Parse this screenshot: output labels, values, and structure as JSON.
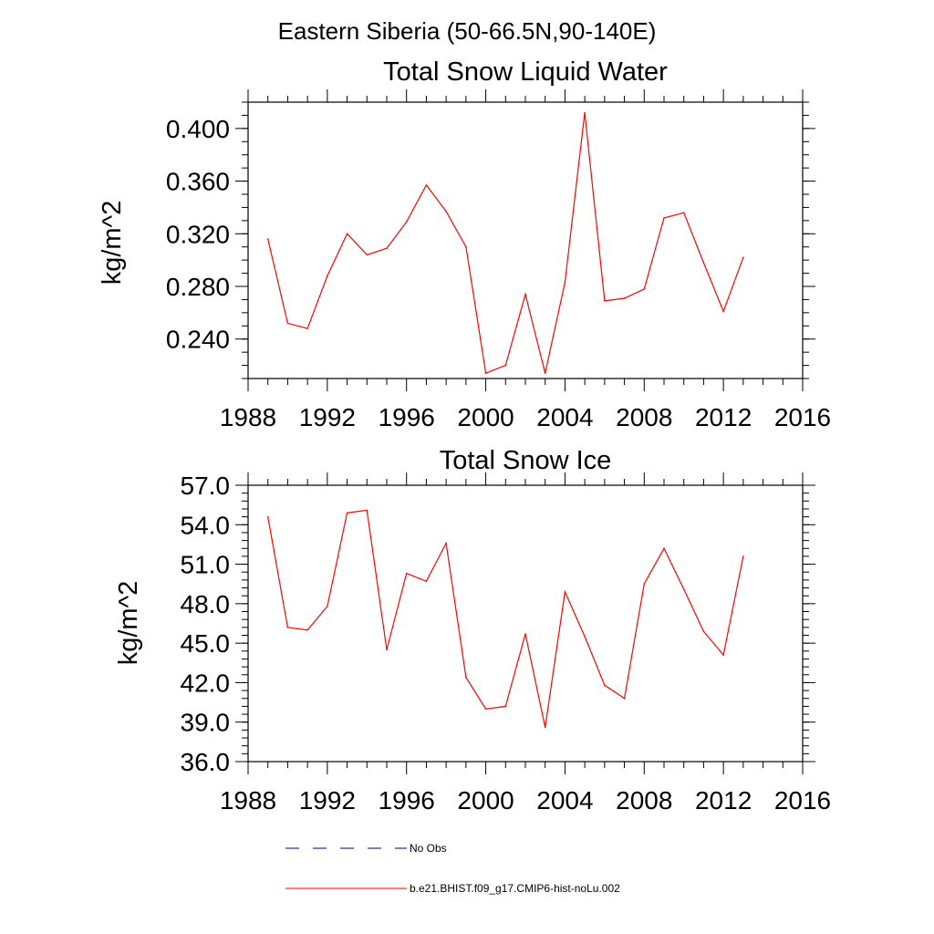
{
  "figure": {
    "region_title": "Eastern Siberia (50-66.5N,90-140E)"
  },
  "chart_data": [
    {
      "type": "line",
      "title": "Total Snow Liquid Water",
      "xlabel": "",
      "ylabel": "kg/m^2",
      "xlim": [
        1988,
        2016
      ],
      "ylim": [
        0.21,
        0.42
      ],
      "x_ticks": [
        "1988",
        "1992",
        "1996",
        "2000",
        "2004",
        "2008",
        "2012",
        "2016"
      ],
      "y_ticks": [
        "0.240",
        "0.280",
        "0.320",
        "0.360",
        "0.400"
      ],
      "y_tick_values": [
        0.24,
        0.28,
        0.32,
        0.36,
        0.4
      ],
      "grid": false,
      "series": [
        {
          "name": "b.e21.BHIST.f09_g17.CMIP6-hist-noLu.002",
          "color": "#ff0000",
          "x": [
            1989,
            1990,
            1991,
            1992,
            1993,
            1994,
            1995,
            1996,
            1997,
            1998,
            1999,
            2000,
            2001,
            2002,
            2003,
            2004,
            2005,
            2006,
            2007,
            2008,
            2009,
            2010,
            2011,
            2012,
            2013
          ],
          "values": [
            0.316,
            0.252,
            0.248,
            0.288,
            0.32,
            0.304,
            0.309,
            0.329,
            0.357,
            0.337,
            0.31,
            0.214,
            0.22,
            0.274,
            0.214,
            0.283,
            0.412,
            0.269,
            0.271,
            0.278,
            0.332,
            0.336,
            0.298,
            0.261,
            0.302
          ]
        }
      ]
    },
    {
      "type": "line",
      "title": "Total Snow Ice",
      "xlabel": "",
      "ylabel": "kg/m^2",
      "xlim": [
        1988,
        2016
      ],
      "ylim": [
        36.0,
        57.0
      ],
      "x_ticks": [
        "1988",
        "1992",
        "1996",
        "2000",
        "2004",
        "2008",
        "2012",
        "2016"
      ],
      "y_ticks": [
        "36.0",
        "39.0",
        "42.0",
        "45.0",
        "48.0",
        "51.0",
        "54.0",
        "57.0"
      ],
      "y_tick_values": [
        36,
        39,
        42,
        45,
        48,
        51,
        54,
        57
      ],
      "grid": false,
      "series": [
        {
          "name": "b.e21.BHIST.f09_g17.CMIP6-hist-noLu.002",
          "color": "#ff0000",
          "x": [
            1989,
            1990,
            1991,
            1992,
            1993,
            1994,
            1995,
            1996,
            1997,
            1998,
            1999,
            2000,
            2001,
            2002,
            2003,
            2004,
            2005,
            2006,
            2007,
            2008,
            2009,
            2010,
            2011,
            2012,
            2013
          ],
          "values": [
            54.6,
            46.2,
            46.0,
            47.8,
            54.9,
            55.1,
            44.5,
            50.3,
            49.7,
            52.6,
            42.4,
            40.0,
            40.2,
            45.7,
            38.6,
            48.9,
            45.5,
            41.8,
            40.8,
            49.5,
            52.2,
            49.1,
            45.9,
            44.1,
            51.6
          ]
        }
      ]
    }
  ],
  "legend": {
    "placement": "bottom",
    "items": [
      {
        "label": "No Obs",
        "color": "#000080",
        "style": "dashed"
      },
      {
        "label": "b.e21.BHIST.f09_g17.CMIP6-hist-noLu.002",
        "color": "#ff0000",
        "style": "solid"
      }
    ]
  }
}
